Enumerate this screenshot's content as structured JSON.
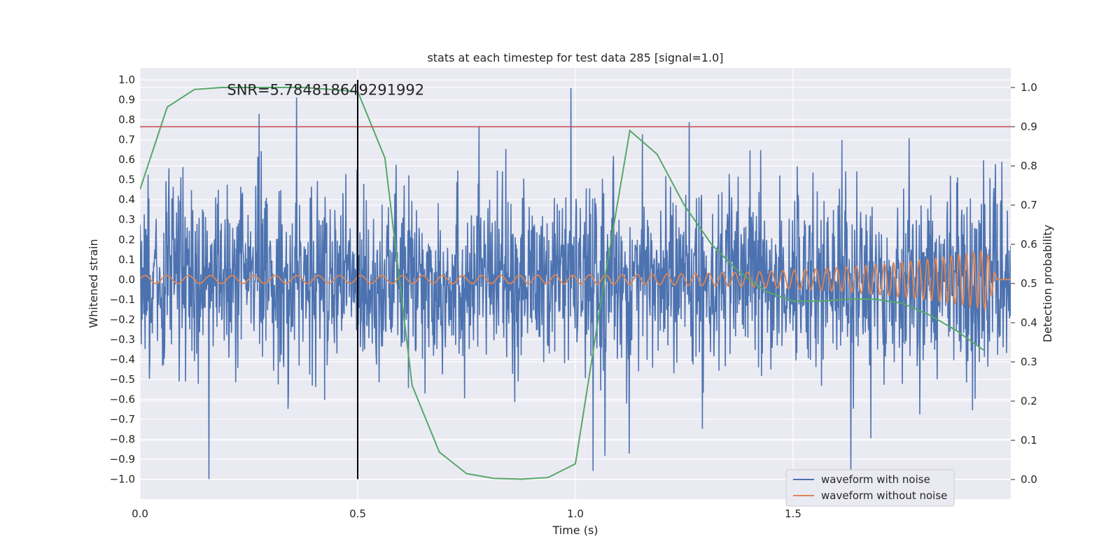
{
  "chart_data": {
    "type": "line",
    "title": "stats at each timestep for test data 285 [signal=1.0]",
    "xlabel": "Time (s)",
    "ylabel": "Whitened strain",
    "y2label": "Detection probability",
    "xlim": [
      0.0,
      2.0
    ],
    "ylim": [
      -1.1,
      1.06
    ],
    "y2lim": [
      -0.05,
      1.05
    ],
    "x_ticks": [
      "0.0",
      "0.5",
      "1.0",
      "1.5"
    ],
    "x_tick_values": [
      0.0,
      0.5,
      1.0,
      1.5
    ],
    "y_ticks": [
      1.0,
      0.9,
      0.8,
      0.7,
      0.6,
      0.5,
      0.4,
      0.3,
      0.2,
      0.1,
      0.0,
      -0.1,
      -0.2,
      -0.3,
      -0.4,
      -0.5,
      -0.6,
      -0.7,
      -0.8,
      -0.9,
      -1.0
    ],
    "y_tick_labels": [
      "1.0",
      "0.9",
      "0.8",
      "0.7",
      "0.6",
      "0.5",
      "0.4",
      "0.3",
      "0.2",
      "0.1",
      "0.0",
      "−0.1",
      "−0.2",
      "−0.3",
      "−0.4",
      "−0.5",
      "−0.6",
      "−0.7",
      "−0.8",
      "−0.9",
      "−1.0"
    ],
    "y2_ticks": [
      1.0,
      0.9,
      0.8,
      0.7,
      0.6,
      0.5,
      0.4,
      0.3,
      0.2,
      0.1,
      0.0
    ],
    "y2_tick_labels": [
      "1.0",
      "0.9",
      "0.8",
      "0.7",
      "0.6",
      "0.5",
      "0.4",
      "0.3",
      "0.2",
      "0.1",
      "0.0"
    ],
    "grid": true,
    "legend_position": "lower-right",
    "annotation": "SNR=5.784818649291992",
    "annotation_x": 0.2,
    "annotation_y": 0.95,
    "vertical_line_x": 0.5,
    "threshold_y2": 0.9,
    "series": [
      {
        "name": "waveform with noise",
        "color": "#4c72b0",
        "axis": "left",
        "kind": "noise",
        "x_range": [
          0.0,
          2.0
        ],
        "samples": 2048,
        "approx_std": 0.22,
        "approx_min": -1.0,
        "approx_max": 0.96
      },
      {
        "name": "waveform without noise",
        "color": "#dd8452",
        "axis": "left",
        "kind": "chirp",
        "x_range": [
          0.0,
          2.0
        ],
        "amplitude_start": 0.02,
        "amplitude_end": 0.17,
        "frequency_start_hz": 20,
        "frequency_end_hz": 65
      },
      {
        "name": "",
        "color": "#55a868",
        "axis": "right",
        "kind": "line",
        "x": [
          0.0,
          0.0625,
          0.125,
          0.1875,
          0.25,
          0.3125,
          0.375,
          0.4375,
          0.5,
          0.5625,
          0.625,
          0.6875,
          0.75,
          0.8125,
          0.875,
          0.9375,
          1.0,
          1.0625,
          1.125,
          1.1875,
          1.25,
          1.3125,
          1.375,
          1.4375,
          1.5,
          1.5625,
          1.625,
          1.6875,
          1.75,
          1.8125,
          1.875,
          1.9375
        ],
        "y": [
          0.74,
          0.95,
          0.995,
          1.0,
          1.0,
          1.0,
          1.0,
          0.995,
          0.99,
          0.82,
          0.24,
          0.07,
          0.015,
          0.003,
          0.001,
          0.005,
          0.04,
          0.48,
          0.89,
          0.83,
          0.7,
          0.6,
          0.53,
          0.48,
          0.455,
          0.455,
          0.46,
          0.46,
          0.45,
          0.42,
          0.38,
          0.33
        ]
      },
      {
        "name": "",
        "color": "#c44e52",
        "axis": "right",
        "kind": "hline",
        "y": 0.9
      }
    ]
  }
}
